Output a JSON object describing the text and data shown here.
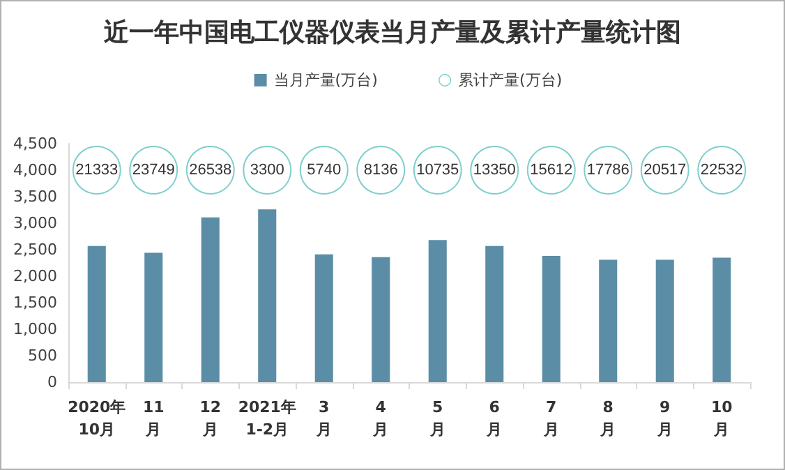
{
  "chart_data": [
    {
      "type": "bar",
      "title": "近一年中国电工仪器仪表当月产量及累计产量统计图",
      "categories": [
        "2020年\n10月",
        "11\n月",
        "12\n月",
        "2021年\n1-2月",
        "3\n月",
        "4\n月",
        "5\n月",
        "6\n月",
        "7\n月",
        "8\n月",
        "9\n月",
        "10\n月"
      ],
      "series": [
        {
          "name": "当月产量(万台)",
          "color": "#5b8ea6",
          "values": [
            2570,
            2440,
            3110,
            3260,
            2410,
            2360,
            2680,
            2570,
            2380,
            2310,
            2310,
            2350
          ]
        }
      ],
      "ylim": [
        0,
        4500
      ],
      "yticks": [
        0,
        500,
        {
          "value": 1000,
          "label": "1,000"
        },
        {
          "value": 1500,
          "label": "1,500"
        },
        {
          "value": 2000,
          "label": "2,000"
        },
        {
          "value": 2500,
          "label": "2,500"
        },
        {
          "value": 3000,
          "label": "3,000"
        },
        {
          "value": 3500,
          "label": "3,500"
        },
        {
          "value": 4000,
          "label": "4,000"
        },
        {
          "value": 4500,
          "label": "4,500"
        }
      ],
      "grid": false,
      "legend": "top"
    },
    {
      "type": "other",
      "categories": [
        null,
        null,
        null,
        null,
        null,
        null,
        null,
        null,
        null,
        null,
        null,
        null
      ],
      "series": [
        {
          "name": "累计产量(万台)",
          "color": "#7ecfcd",
          "values": [
            21333,
            23749,
            26538,
            3300,
            5740,
            8136,
            10735,
            13350,
            15612,
            17786,
            20517,
            22532
          ]
        }
      ],
      "data_labels": true,
      "legend": "top"
    }
  ]
}
